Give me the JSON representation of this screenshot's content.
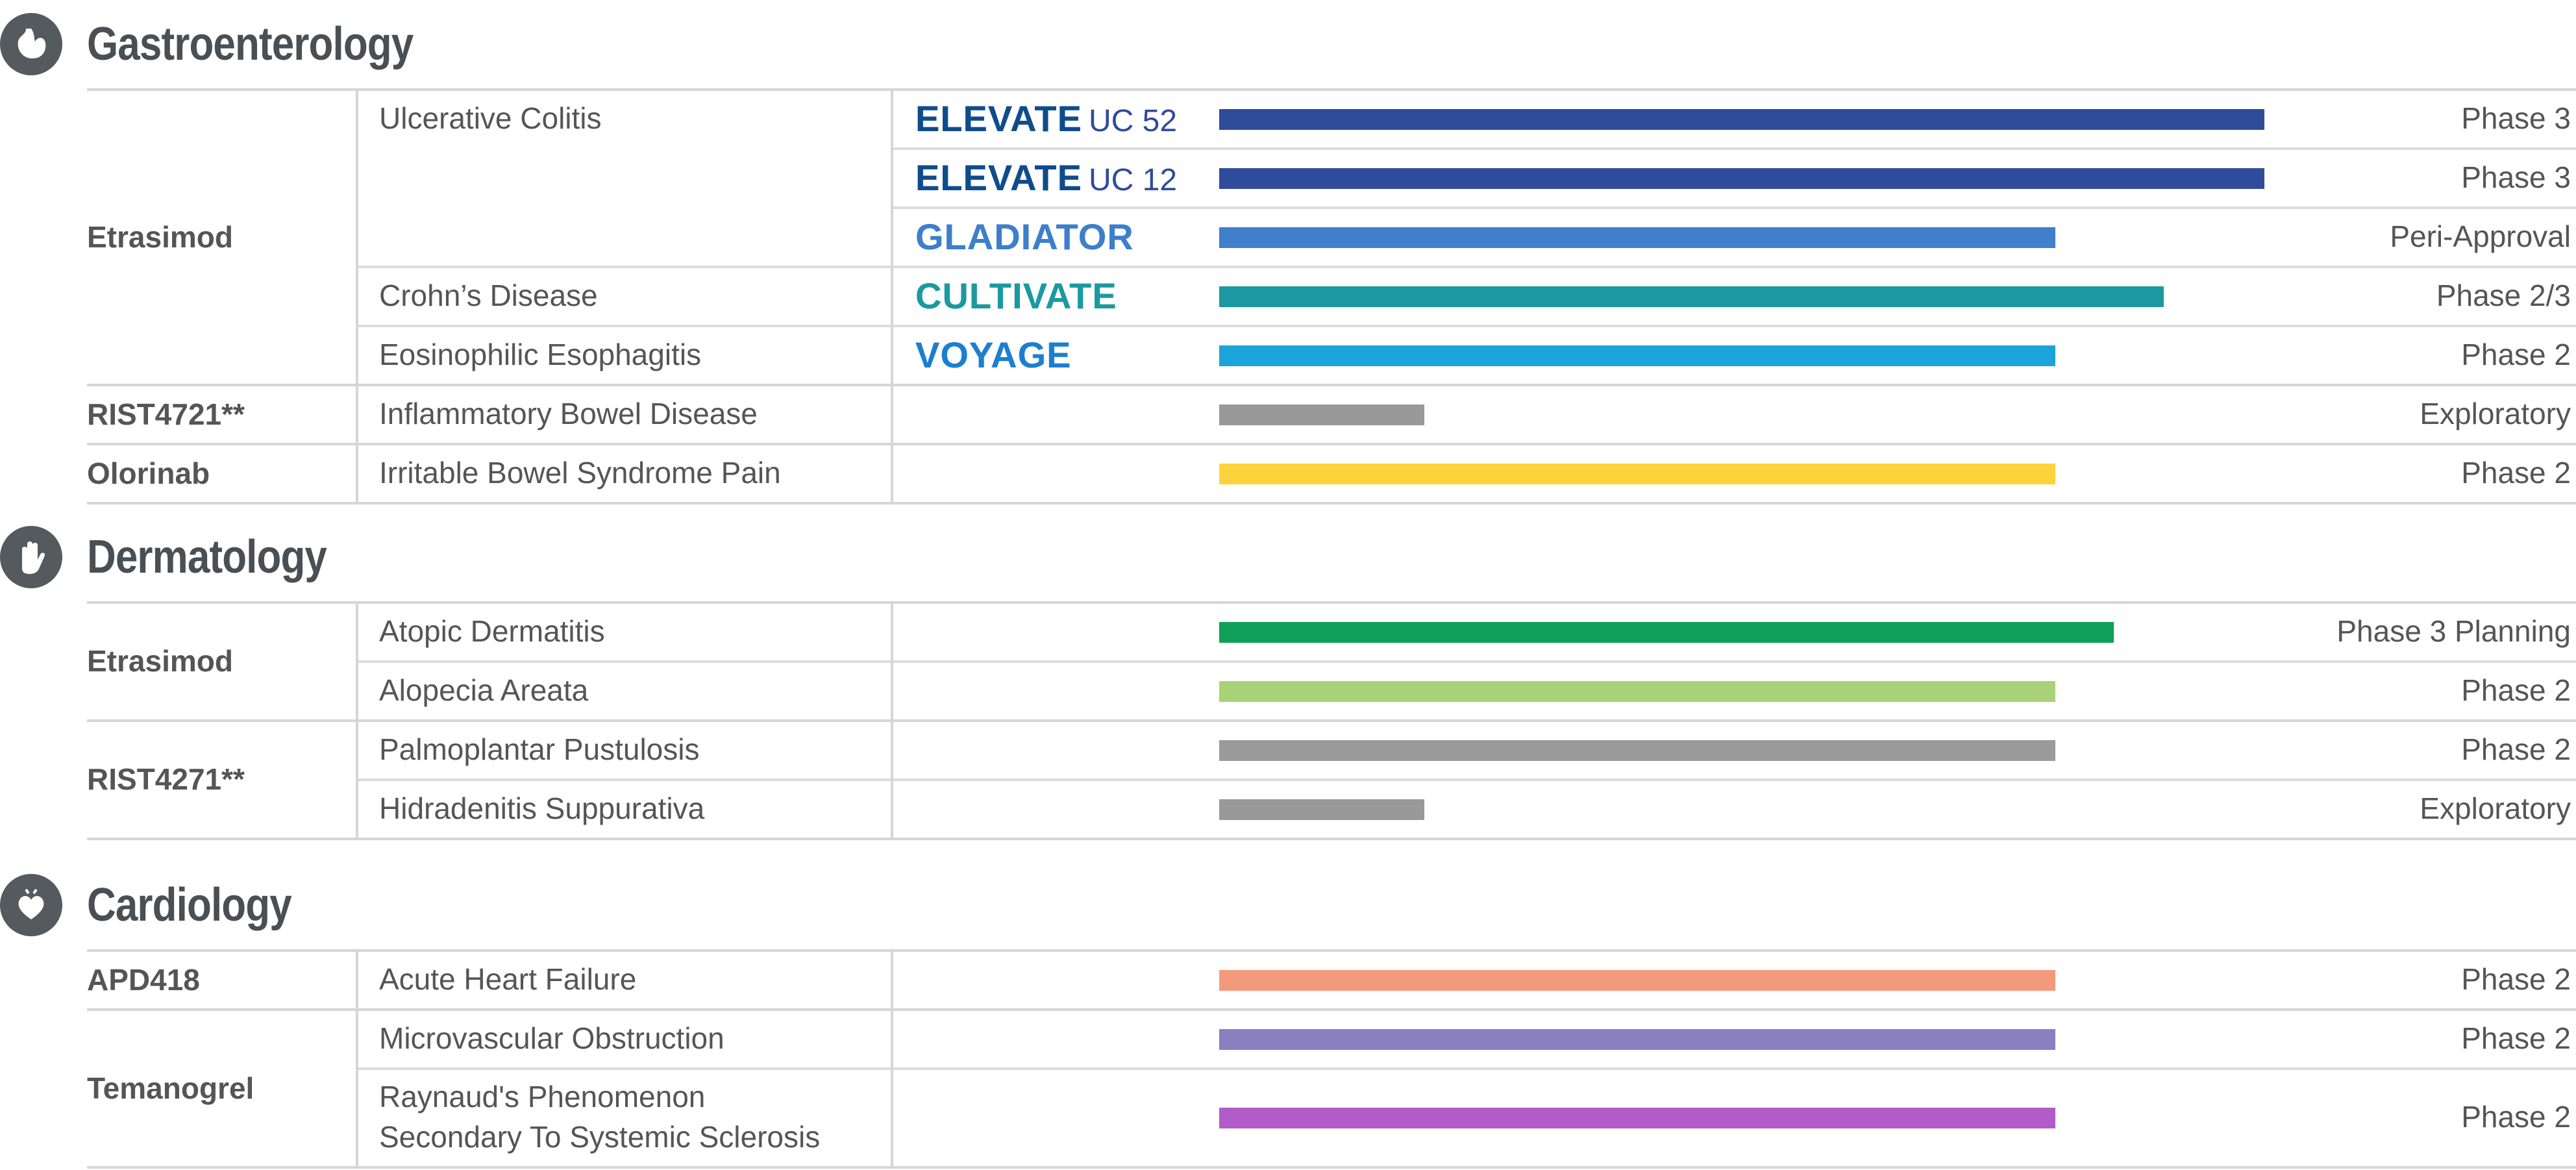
{
  "chart_data": {
    "type": "bar",
    "orientation": "horizontal",
    "phase_scale": {
      "Exploratory": 0.75,
      "Phase 2": 2.0,
      "Peri-Approval": 2.0,
      "Phase 2/3": 2.45,
      "Phase 3 Planning": 2.25,
      "Phase 3": 2.5
    },
    "sections": [
      {
        "title": "Gastroenterology",
        "icon": "stomach-icon",
        "drugs": [
          {
            "name": "Etrasimod",
            "rows": [
              {
                "indication": "Ulcerative Colitis",
                "trial": "ELEVATE",
                "trial_suffix": "UC 52",
                "phase": "Phase 3",
                "value": 2.5,
                "color": "#2e4c9a"
              },
              {
                "indication": "",
                "trial": "ELEVATE",
                "trial_suffix": "UC 12",
                "phase": "Phase 3",
                "value": 2.5,
                "color": "#2e4c9a"
              },
              {
                "indication": "",
                "trial": "GLADIATOR",
                "trial_suffix": "",
                "phase": "Peri-Approval",
                "value": 2.0,
                "color": "#3f7fcb"
              },
              {
                "indication": "Crohn’s Disease",
                "trial": "CULTIVATE",
                "trial_suffix": "",
                "phase": "Phase 2/3",
                "value": 2.26,
                "color": "#1b99a2"
              },
              {
                "indication": "Eosinophilic Esophagitis",
                "trial": "VOYAGE",
                "trial_suffix": "",
                "phase": "Phase 2",
                "value": 2.0,
                "color": "#1da3db"
              }
            ]
          },
          {
            "name": "RIST4721**",
            "rows": [
              {
                "indication": "Inflammatory Bowel Disease",
                "trial": "",
                "trial_suffix": "",
                "phase": "Exploratory",
                "value": 0.49,
                "color": "#999999"
              }
            ]
          },
          {
            "name": "Olorinab",
            "rows": [
              {
                "indication": "Irritable Bowel Syndrome Pain",
                "trial": "",
                "trial_suffix": "",
                "phase": "Phase 2",
                "value": 2.0,
                "color": "#fcd33b"
              }
            ]
          }
        ]
      },
      {
        "title": "Dermatology",
        "icon": "hand-icon",
        "drugs": [
          {
            "name": "Etrasimod",
            "rows": [
              {
                "indication": "Atopic Dermatitis",
                "trial": "",
                "trial_suffix": "",
                "phase": "Phase 3 Planning",
                "value": 2.14,
                "color": "#0f9f58"
              },
              {
                "indication": "Alopecia Areata",
                "trial": "",
                "trial_suffix": "",
                "phase": "Phase 2",
                "value": 2.0,
                "color": "#a8d277"
              }
            ]
          },
          {
            "name": "RIST4271**",
            "rows": [
              {
                "indication": "Palmoplantar Pustulosis",
                "trial": "",
                "trial_suffix": "",
                "phase": "Phase 2",
                "value": 2.0,
                "color": "#9a9a9a"
              },
              {
                "indication": "Hidradenitis Suppurativa",
                "trial": "",
                "trial_suffix": "",
                "phase": "Exploratory",
                "value": 0.49,
                "color": "#999999"
              }
            ]
          }
        ]
      },
      {
        "title": "Cardiology",
        "icon": "heart-icon",
        "drugs": [
          {
            "name": "APD418",
            "rows": [
              {
                "indication": "Acute Heart Failure",
                "trial": "",
                "trial_suffix": "",
                "phase": "Phase 2",
                "value": 2.0,
                "color": "#f39a7d"
              }
            ]
          },
          {
            "name": "Temanogrel",
            "rows": [
              {
                "indication": "Microvascular Obstruction",
                "trial": "",
                "trial_suffix": "",
                "phase": "Phase 2",
                "value": 2.0,
                "color": "#8a7fbf"
              },
              {
                "indication": "Raynaud's Phenomenon",
                "indication_line2": "Secondary To Systemic Sclerosis",
                "trial": "",
                "trial_suffix": "",
                "phase": "Phase 2",
                "value": 2.0,
                "color": "#b15cc8"
              }
            ]
          }
        ]
      }
    ]
  }
}
